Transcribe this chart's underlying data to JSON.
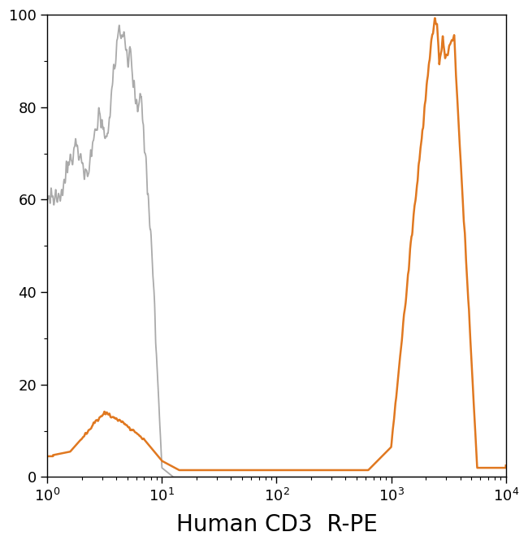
{
  "title": "",
  "xlabel": "Human CD3  R-PE",
  "ylabel": "",
  "xlim_log": [
    1,
    10000
  ],
  "ylim": [
    0,
    100
  ],
  "background_color": "#ffffff",
  "gray_color": "#aaaaaa",
  "orange_color": "#e07820",
  "gray_linewidth": 1.3,
  "orange_linewidth": 1.8,
  "figsize": [
    6.5,
    6.7
  ],
  "dpi": 100
}
